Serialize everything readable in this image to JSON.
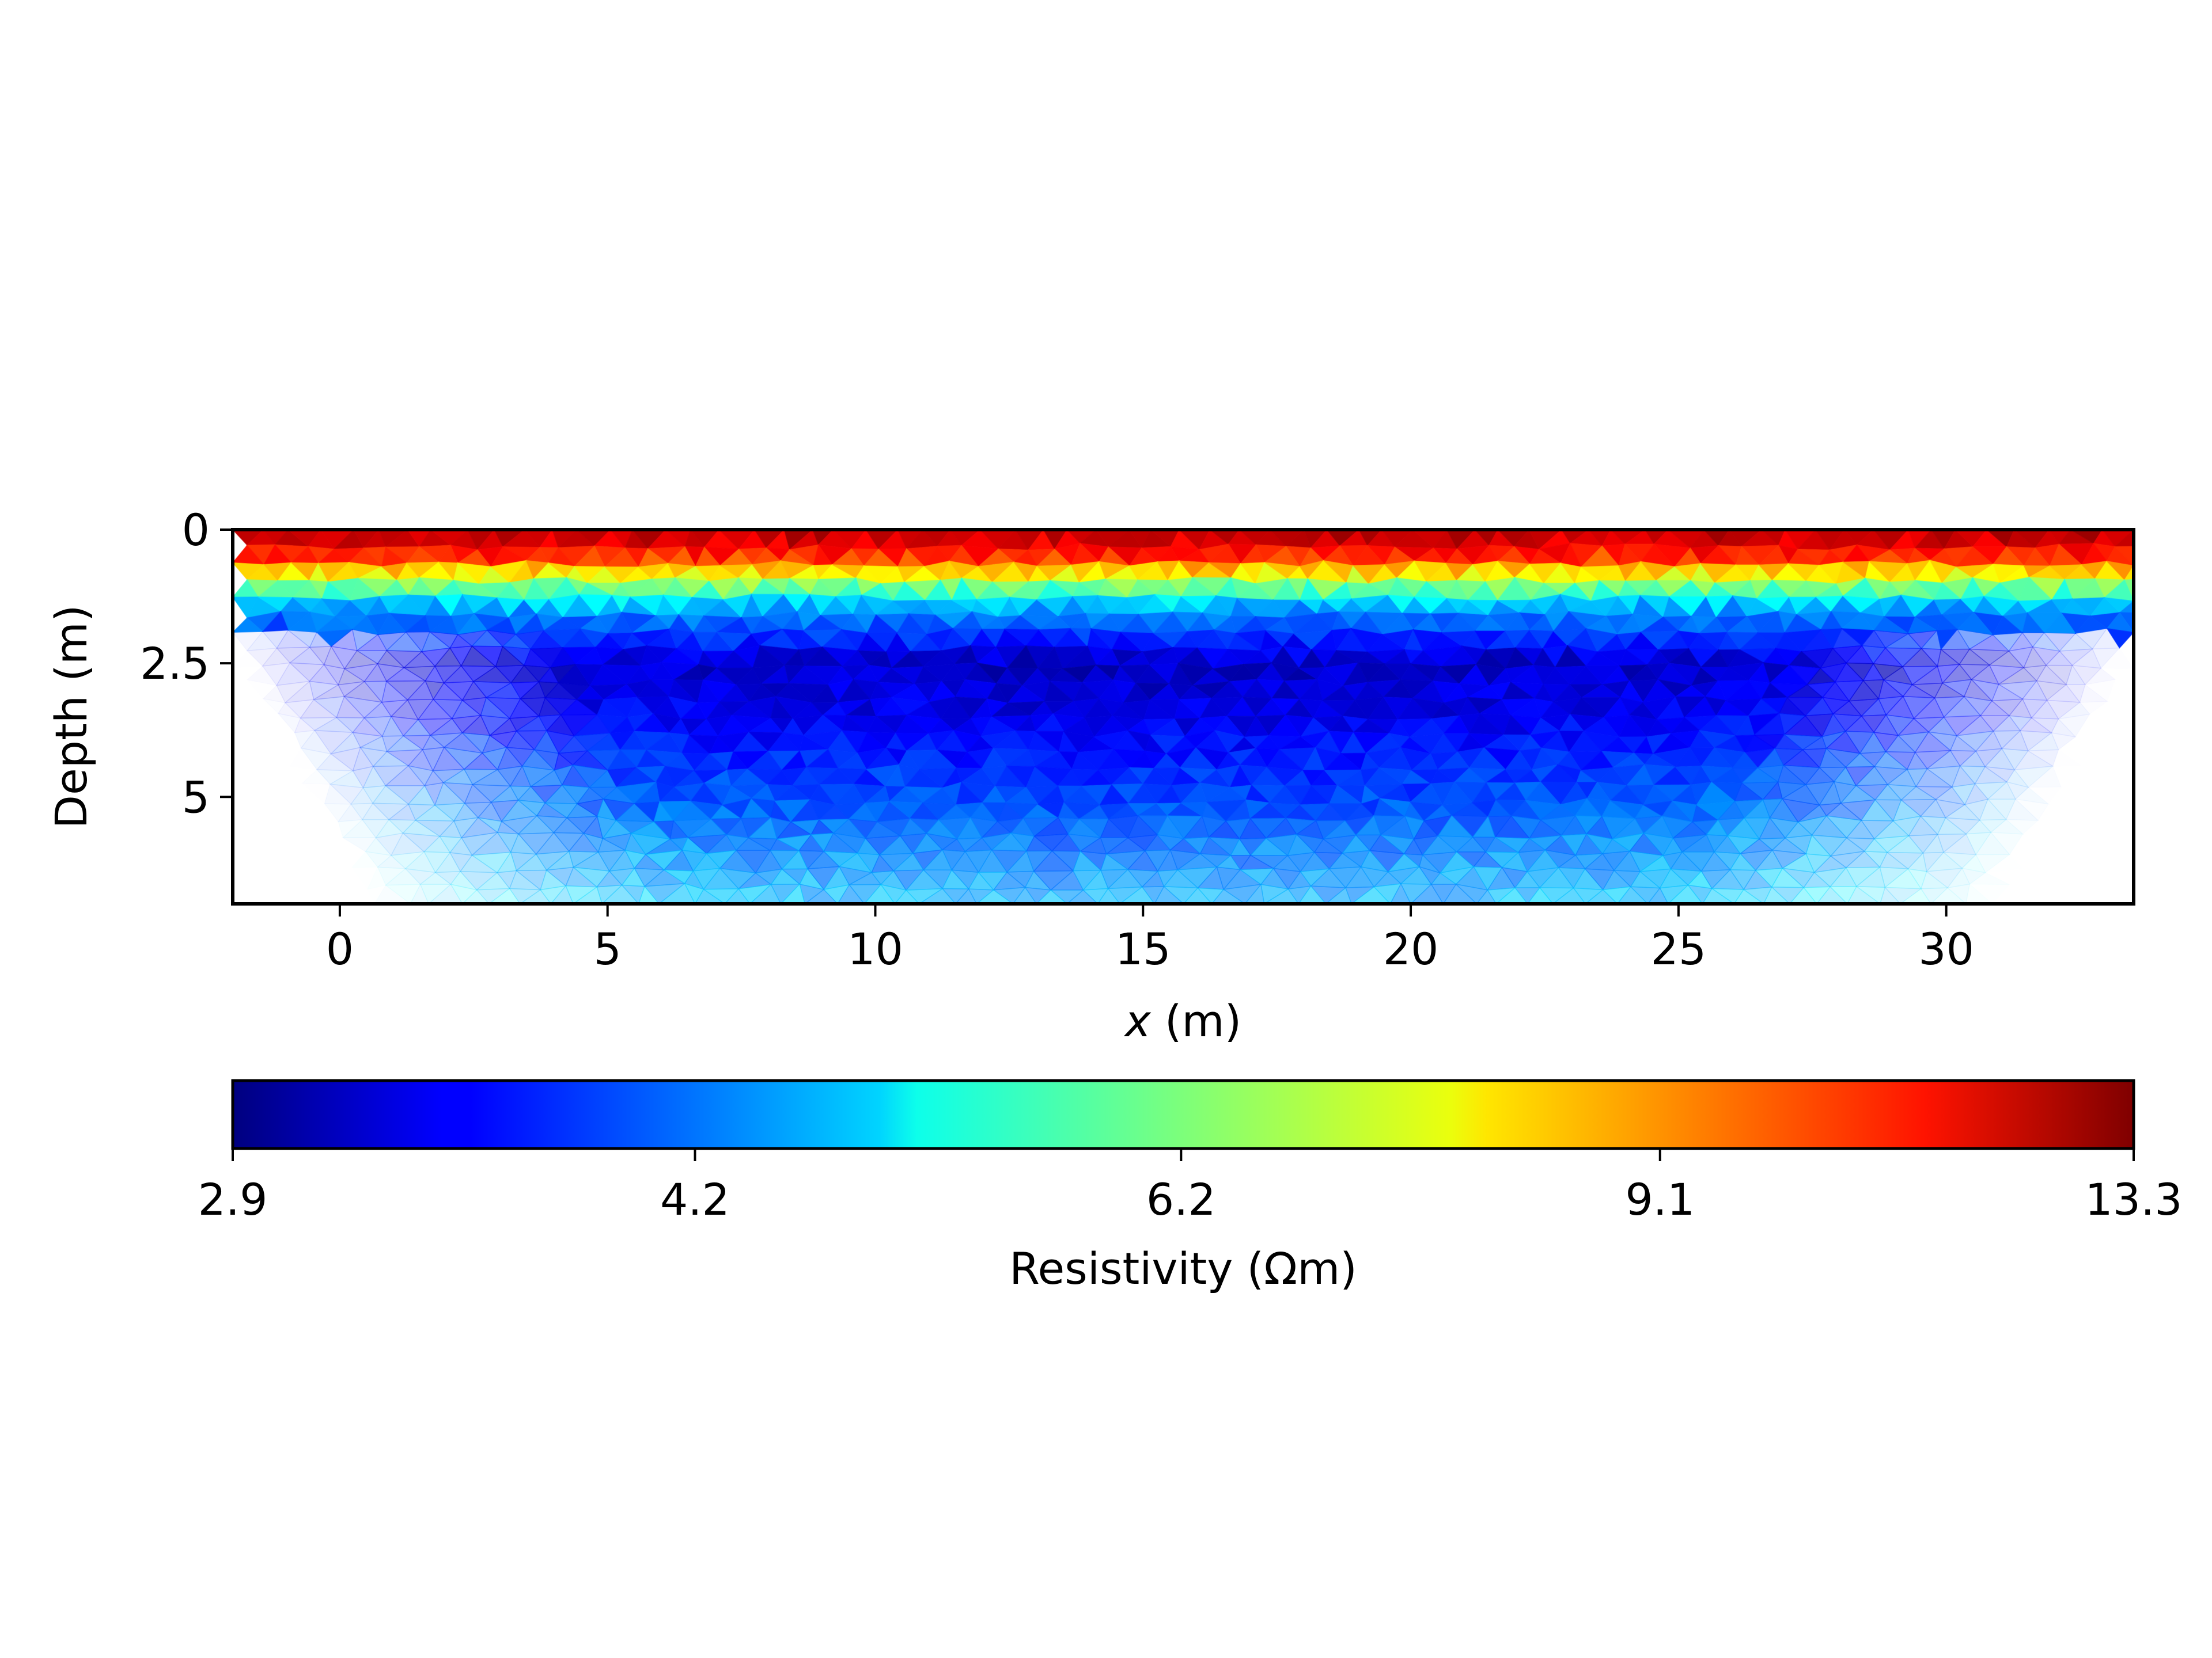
{
  "chart_data": {
    "type": "heatmap",
    "title": "",
    "xlabel_var": "x",
    "xlabel_unit": " (m)",
    "ylabel": "Depth (m)",
    "xlim": [
      -2.0,
      33.5
    ],
    "ylim": [
      0,
      7.0
    ],
    "y_inverted": true,
    "xticks": [
      0,
      5,
      10,
      15,
      20,
      25,
      30
    ],
    "yticks": [
      0,
      2.5,
      5
    ],
    "xtick_labels": [
      "0",
      "5",
      "10",
      "15",
      "20",
      "25",
      "30"
    ],
    "ytick_labels": [
      "0",
      "2.5",
      "5"
    ],
    "colormap": "jet",
    "color_scale": "log",
    "colorbar": {
      "label": "Resistivity (Ωm)",
      "min": 2.9,
      "max": 13.3,
      "ticks": [
        2.9,
        4.2,
        6.2,
        9.1,
        13.3
      ],
      "tick_labels": [
        "2.9",
        "4.2",
        "6.2",
        "9.1",
        "13.3"
      ],
      "orientation": "horizontal",
      "placement": "bottom"
    },
    "coverage_fades_at_edges": true,
    "description_depth_profile": [
      {
        "depth": 0.0,
        "value": 12.5
      },
      {
        "depth": 0.5,
        "value": 10.5
      },
      {
        "depth": 1.0,
        "value": 6.5
      },
      {
        "depth": 1.5,
        "value": 4.4
      },
      {
        "depth": 2.5,
        "value": 3.2
      },
      {
        "depth": 3.5,
        "value": 3.4
      },
      {
        "depth": 5.0,
        "value": 3.9
      },
      {
        "depth": 7.0,
        "value": 4.5
      }
    ]
  }
}
